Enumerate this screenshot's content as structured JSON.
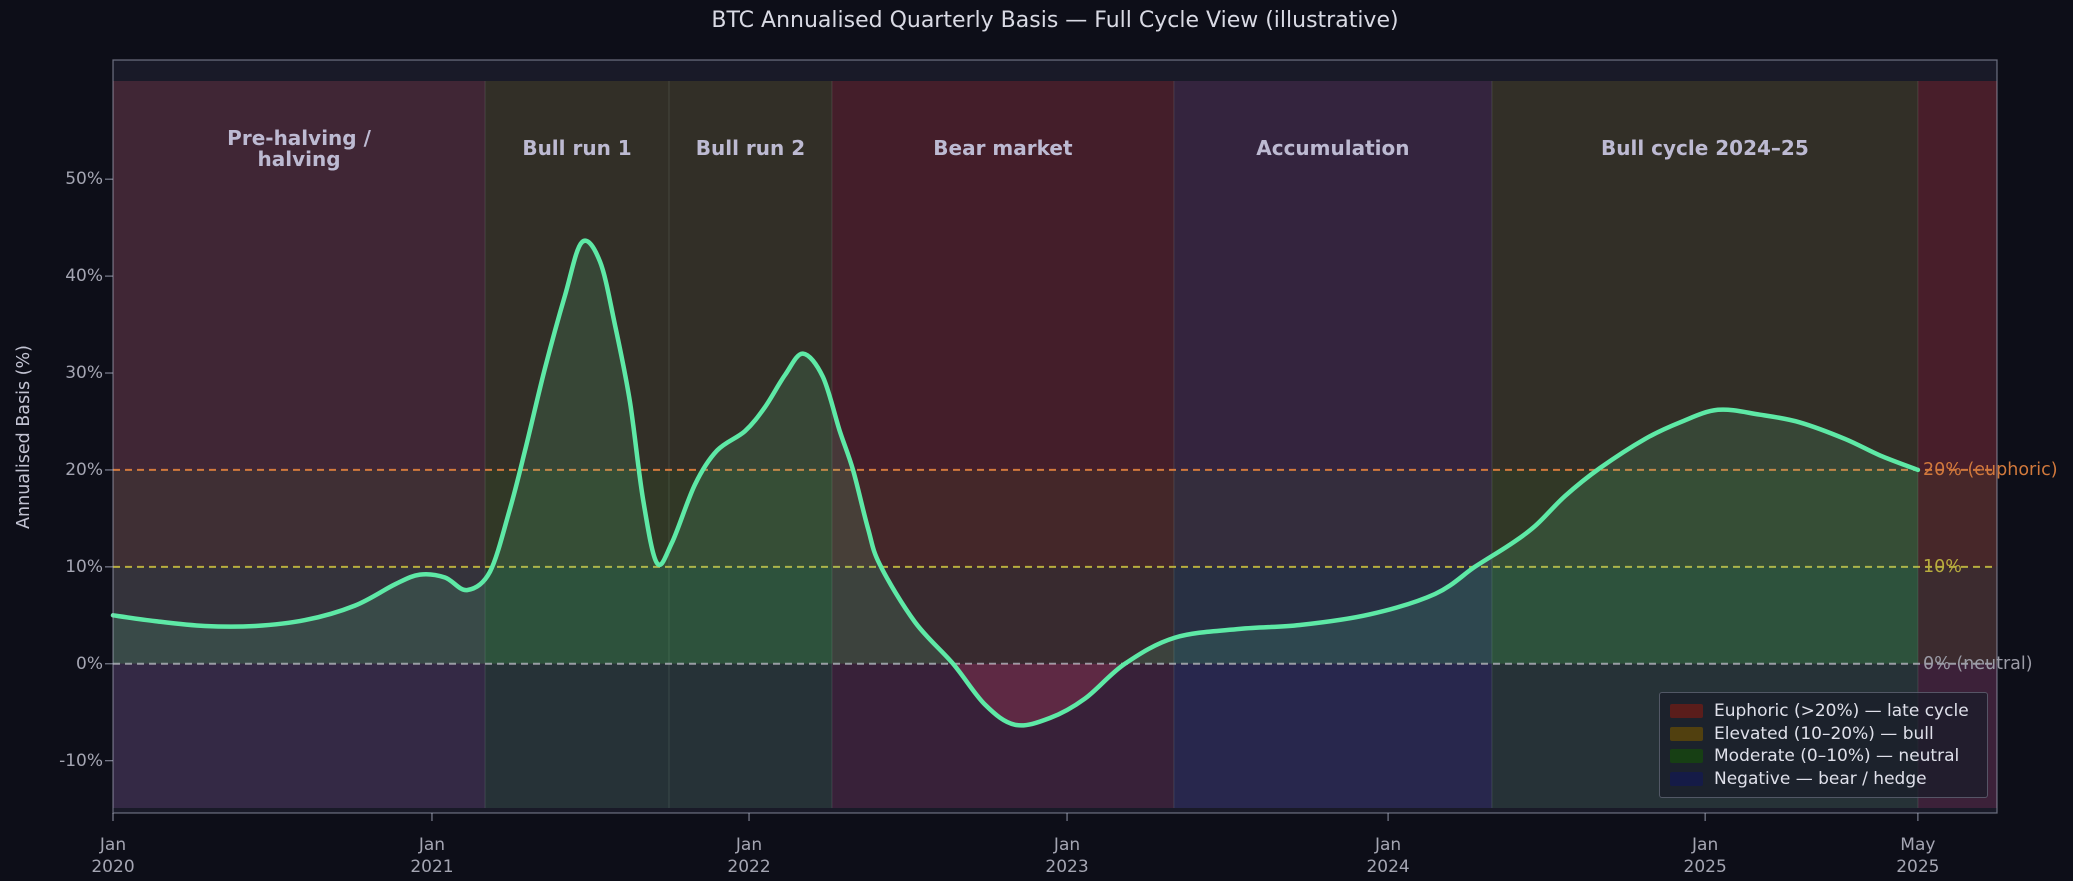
{
  "chart_data": {
    "type": "line",
    "title": "BTC Annualised Quarterly Basis — Full Cycle View (illustrative)",
    "ylabel": "Annualised Basis (%)",
    "ylim": [
      -15.4,
      62.3
    ],
    "grid": false,
    "line_color": "#5ee9a6",
    "fill_above_zero_color": "rgba(95,233,166,0.13)",
    "fill_below_zero_color": "rgba(230,75,110,0.22)",
    "y_ticks": [
      {
        "label": "50%",
        "value": 50
      },
      {
        "label": "40%",
        "value": 40
      },
      {
        "label": "30%",
        "value": 30
      },
      {
        "label": "20%",
        "value": 20
      },
      {
        "label": "10%",
        "value": 10
      },
      {
        "label": "0%",
        "value": 0
      },
      {
        "label": "-10%",
        "value": -10
      }
    ],
    "x_ticks": [
      {
        "line1": "Jan",
        "line2": "2020",
        "frac": 0.0
      },
      {
        "line1": "Jan",
        "line2": "2021",
        "frac": 0.1693
      },
      {
        "line1": "Jan",
        "line2": "2022",
        "frac": 0.3376
      },
      {
        "line1": "Jan",
        "line2": "2023",
        "frac": 0.5064
      },
      {
        "line1": "Jan",
        "line2": "2024",
        "frac": 0.6768
      },
      {
        "line1": "Jan",
        "line2": "2025",
        "frac": 0.8451
      },
      {
        "line1": "May",
        "line2": "2025",
        "frac": 0.958
      }
    ],
    "eras": [
      {
        "label_lines": [
          "Pre-halving /",
          "halving"
        ],
        "start_frac": 0.0,
        "end_frac": 0.1975,
        "color": "rgba(205,105,150,0.13)"
      },
      {
        "label_lines": [
          "Bull run 1"
        ],
        "start_frac": 0.1975,
        "end_frac": 0.2951,
        "color": "rgba(100,180,40,0.13)"
      },
      {
        "label_lines": [
          "Bull run 2"
        ],
        "start_frac": 0.2951,
        "end_frac": 0.3816,
        "color": "rgba(100,180,40,0.13)"
      },
      {
        "label_lines": [
          "Bear market"
        ],
        "start_frac": 0.3816,
        "end_frac": 0.5631,
        "color": "rgba(225,45,55,0.14)"
      },
      {
        "label_lines": [
          "Accumulation"
        ],
        "start_frac": 0.5631,
        "end_frac": 0.7319,
        "color": "rgba(115,85,200,0.14)"
      },
      {
        "label_lines": [
          "Bull cycle 2024–25"
        ],
        "start_frac": 0.7319,
        "end_frac": 0.958,
        "color": "rgba(100,180,40,0.13)"
      },
      {
        "label_lines": [],
        "start_frac": 0.958,
        "end_frac": 1.0,
        "color": "rgba(225,45,55,0.16)"
      }
    ],
    "zones": [
      {
        "name": "euphoric",
        "from": 20,
        "to": null,
        "color": "rgba(190,45,45,0.11)"
      },
      {
        "name": "elevated",
        "from": 10,
        "to": 20,
        "color": "rgba(200,160,40,0.10)"
      },
      {
        "name": "moderate",
        "from": 0,
        "to": 10,
        "color": "rgba(70,200,110,0.10)"
      },
      {
        "name": "negative",
        "from": null,
        "to": 0,
        "color": "rgba(65,90,230,0.10)"
      }
    ],
    "reference_lines": [
      {
        "value": 20,
        "label": "20% (euphoric)",
        "color": "#d2793c"
      },
      {
        "value": 10,
        "label": "10%",
        "color": "#b8ad3e"
      },
      {
        "value": 0,
        "label": "0% (neutral)",
        "color": "#9b9ba6"
      }
    ],
    "legend": [
      {
        "label": "Euphoric (>20%) — late cycle",
        "swatch": "#5a1d1b"
      },
      {
        "label": "Elevated (10–20%) — bull",
        "swatch": "#51400f"
      },
      {
        "label": "Moderate (0–10%) — neutral",
        "swatch": "#173f14"
      },
      {
        "label": "Negative — bear / hedge",
        "swatch": "#151b47"
      }
    ],
    "series": [
      {
        "name": "BTC annualised quarterly basis",
        "points": [
          [
            "2020-01",
            0.0,
            5.0
          ],
          [
            "2020-02",
            0.0223,
            4.4
          ],
          [
            "2020-04",
            0.0488,
            3.9
          ],
          [
            "2020-06",
            0.0754,
            3.9
          ],
          [
            "2020-08",
            0.1019,
            4.5
          ],
          [
            "2020-10",
            0.1284,
            6.0
          ],
          [
            "2020-11",
            0.1497,
            8.2
          ],
          [
            "2020-12",
            0.1629,
            9.2
          ],
          [
            "2021-01",
            0.1762,
            8.9
          ],
          [
            "2021-02",
            0.1879,
            7.6
          ],
          [
            "2021-03",
            0.2001,
            9.5
          ],
          [
            "2021-04",
            0.2107,
            16.0
          ],
          [
            "2021-04",
            0.2187,
            22.0
          ],
          [
            "2021-05",
            0.2293,
            30.5
          ],
          [
            "2021-06",
            0.2399,
            38.0
          ],
          [
            "2021-06",
            0.2489,
            43.5
          ],
          [
            "2021-07",
            0.2585,
            41.5
          ],
          [
            "2021-07",
            0.2664,
            35.0
          ],
          [
            "2021-08",
            0.2744,
            27.0
          ],
          [
            "2021-08",
            0.2813,
            17.0
          ],
          [
            "2021-09",
            0.2887,
            10.4
          ],
          [
            "2021-10",
            0.2967,
            12.5
          ],
          [
            "2021-10",
            0.3089,
            18.5
          ],
          [
            "2021-11",
            0.3206,
            22.0
          ],
          [
            "2021-12",
            0.3354,
            24.0
          ],
          [
            "2022-01",
            0.3461,
            26.5
          ],
          [
            "2022-02",
            0.3567,
            29.8
          ],
          [
            "2022-02",
            0.3662,
            32.0
          ],
          [
            "2022-03",
            0.3768,
            29.6
          ],
          [
            "2022-04",
            0.3858,
            24.0
          ],
          [
            "2022-04",
            0.3928,
            20.0
          ],
          [
            "2022-05",
            0.4007,
            14.0
          ],
          [
            "2022-05",
            0.4071,
            10.2
          ],
          [
            "2022-06",
            0.4257,
            4.3
          ],
          [
            "2022-08",
            0.4459,
            0.0
          ],
          [
            "2022-09",
            0.4628,
            -4.2
          ],
          [
            "2022-11",
            0.4788,
            -6.3
          ],
          [
            "2022-12",
            0.4973,
            -5.6
          ],
          [
            "2023-01",
            0.5159,
            -3.6
          ],
          [
            "2023-03",
            0.5371,
            0.0
          ],
          [
            "2023-05",
            0.5637,
            2.7
          ],
          [
            "2023-07",
            0.5982,
            3.6
          ],
          [
            "2023-09",
            0.63,
            4.0
          ],
          [
            "2023-12",
            0.6672,
            5.1
          ],
          [
            "2024-02",
            0.7017,
            7.2
          ],
          [
            "2024-04",
            0.7229,
            10.0
          ],
          [
            "2024-05",
            0.7415,
            12.3
          ],
          [
            "2024-06",
            0.7548,
            14.2
          ],
          [
            "2024-08",
            0.7707,
            17.3
          ],
          [
            "2024-09",
            0.7893,
            20.2
          ],
          [
            "2024-10",
            0.8132,
            23.2
          ],
          [
            "2024-12",
            0.8317,
            24.9
          ],
          [
            "2025-01",
            0.8519,
            26.2
          ],
          [
            "2025-02",
            0.8742,
            25.7
          ],
          [
            "2025-03",
            0.8954,
            24.9
          ],
          [
            "2025-04",
            0.9193,
            23.2
          ],
          [
            "2025-04",
            0.9379,
            21.5
          ],
          [
            "2025-05",
            0.958,
            20.0
          ]
        ]
      }
    ]
  }
}
